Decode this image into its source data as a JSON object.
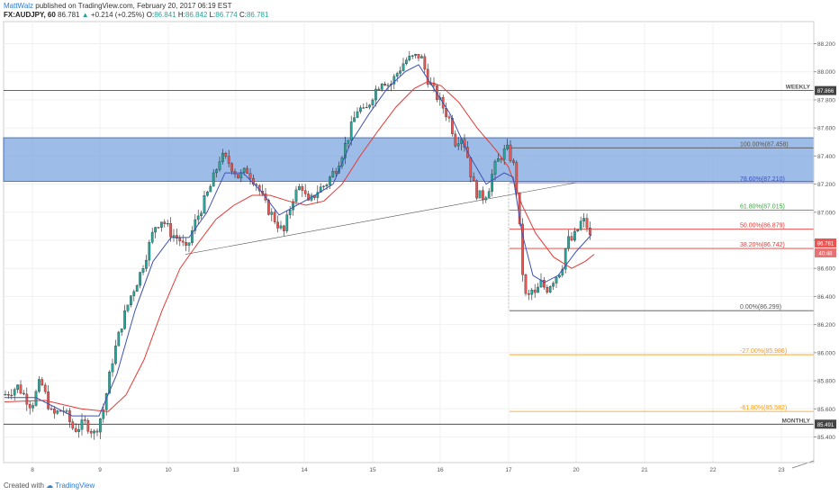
{
  "header": {
    "author": "MattWalz",
    "published": "published on TradingView.com, February 20, 2017 06:19 EST",
    "symbol": "FX:AUDJPY, 60",
    "last": "86.781",
    "change": "+0.214 (+0.25%)",
    "o_label": "O:",
    "o": "86.841",
    "h_label": "H:",
    "h": "86.842",
    "l_label": "L:",
    "l": "86.774",
    "c_label": "C:",
    "c": "86.781"
  },
  "footer": {
    "created_with": "Created with",
    "brand": "TradingView"
  },
  "colors": {
    "up": "#26a69a",
    "down": "#ef5350",
    "zone": "#7ea6e0",
    "ma_fast": "#3f51b5",
    "ma_slow": "#e53935",
    "fib_100": "#555555",
    "fib_786": "#3f51b5",
    "fib_618": "#43a047",
    "fib_500": "#e53935",
    "fib_382": "#e53935",
    "fib_0": "#555555",
    "fib_ext": "#ff9800"
  },
  "chart_data": {
    "type": "candlestick",
    "x_ticks": [
      "8",
      "9",
      "10",
      "13",
      "14",
      "15",
      "16",
      "17",
      "20",
      "21",
      "22",
      "23"
    ],
    "y_ticks": [
      "88.200",
      "88.000",
      "87.800",
      "87.600",
      "87.400",
      "87.200",
      "87.000",
      "86.800",
      "86.600",
      "86.400",
      "86.200",
      "86.000",
      "85.800",
      "85.600",
      "85.400"
    ],
    "ylim": [
      85.3,
      88.3
    ],
    "current_price": "86.781",
    "countdown": "40:48",
    "levels": [
      {
        "name": "WEEKLY",
        "value": "87.866"
      },
      {
        "name": "MONTHLY",
        "value": "85.491"
      }
    ],
    "zone": {
      "from": 87.22,
      "to": 87.53
    },
    "fib_levels": [
      {
        "label": "100.00%(87.458)",
        "value": 87.458,
        "role": "fib_100"
      },
      {
        "label": "78.60%(87.210)",
        "value": 87.21,
        "role": "fib_786"
      },
      {
        "label": "61.80%(87.015)",
        "value": 87.015,
        "role": "fib_618"
      },
      {
        "label": "50.00%(86.879)",
        "value": 86.879,
        "role": "fib_500"
      },
      {
        "label": "38.20%(86.742)",
        "value": 86.742,
        "role": "fib_382"
      },
      {
        "label": "0.00%(86.299)",
        "value": 86.299,
        "role": "fib_0"
      },
      {
        "label": "-27.00%(85.986)",
        "value": 85.986,
        "role": "fib_ext"
      },
      {
        "label": "-61.80%(85.582)",
        "value": 85.582,
        "role": "fib_ext"
      }
    ],
    "trendline": {
      "from": [
        206,
        86.7
      ],
      "to": [
        640,
        87.21
      ]
    },
    "price_path": [
      [
        5,
        85.7
      ],
      [
        20,
        85.76
      ],
      [
        35,
        85.62
      ],
      [
        45,
        85.8
      ],
      [
        58,
        85.55
      ],
      [
        70,
        85.6
      ],
      [
        82,
        85.45
      ],
      [
        95,
        85.5
      ],
      [
        105,
        85.42
      ],
      [
        115,
        85.6
      ],
      [
        125,
        85.95
      ],
      [
        135,
        86.2
      ],
      [
        145,
        86.4
      ],
      [
        155,
        86.55
      ],
      [
        165,
        86.75
      ],
      [
        172,
        86.9
      ],
      [
        180,
        86.95
      ],
      [
        190,
        86.85
      ],
      [
        200,
        86.8
      ],
      [
        207,
        86.72
      ],
      [
        215,
        86.9
      ],
      [
        225,
        87.05
      ],
      [
        235,
        87.2
      ],
      [
        245,
        87.4
      ],
      [
        255,
        87.35
      ],
      [
        265,
        87.25
      ],
      [
        275,
        87.3
      ],
      [
        285,
        87.2
      ],
      [
        295,
        87.05
      ],
      [
        305,
        86.95
      ],
      [
        315,
        86.85
      ],
      [
        325,
        87.1
      ],
      [
        335,
        87.2
      ],
      [
        342,
        87.05
      ],
      [
        352,
        87.15
      ],
      [
        362,
        87.2
      ],
      [
        372,
        87.3
      ],
      [
        382,
        87.45
      ],
      [
        390,
        87.6
      ],
      [
        398,
        87.75
      ],
      [
        405,
        87.7
      ],
      [
        415,
        87.85
      ],
      [
        425,
        87.95
      ],
      [
        433,
        87.9
      ],
      [
        442,
        88.0
      ],
      [
        450,
        88.08
      ],
      [
        460,
        88.1
      ],
      [
        467,
        88.12
      ],
      [
        475,
        87.95
      ],
      [
        483,
        87.85
      ],
      [
        492,
        87.75
      ],
      [
        500,
        87.65
      ],
      [
        506,
        87.5
      ],
      [
        512,
        87.55
      ],
      [
        518,
        87.45
      ],
      [
        522,
        87.3
      ],
      [
        528,
        87.15
      ],
      [
        535,
        87.1
      ],
      [
        542,
        87.15
      ],
      [
        548,
        87.3
      ],
      [
        556,
        87.4
      ],
      [
        563,
        87.45
      ],
      [
        570,
        87.35
      ],
      [
        575,
        87.1
      ],
      [
        580,
        86.6
      ],
      [
        585,
        86.35
      ],
      [
        590,
        86.45
      ],
      [
        595,
        86.4
      ],
      [
        600,
        86.5
      ],
      [
        607,
        86.45
      ],
      [
        612,
        86.5
      ],
      [
        618,
        86.55
      ],
      [
        624,
        86.6
      ],
      [
        630,
        86.8
      ],
      [
        636,
        86.8
      ],
      [
        642,
        86.88
      ],
      [
        647,
        86.95
      ],
      [
        652,
        86.9
      ],
      [
        657,
        86.78
      ]
    ],
    "ma_fast": [
      [
        5,
        85.68
      ],
      [
        40,
        85.68
      ],
      [
        80,
        85.55
      ],
      [
        110,
        85.55
      ],
      [
        130,
        85.85
      ],
      [
        150,
        86.3
      ],
      [
        170,
        86.65
      ],
      [
        190,
        86.82
      ],
      [
        210,
        86.82
      ],
      [
        230,
        87.0
      ],
      [
        250,
        87.28
      ],
      [
        270,
        87.28
      ],
      [
        290,
        87.15
      ],
      [
        310,
        86.98
      ],
      [
        330,
        87.05
      ],
      [
        350,
        87.12
      ],
      [
        370,
        87.2
      ],
      [
        390,
        87.5
      ],
      [
        410,
        87.7
      ],
      [
        430,
        87.88
      ],
      [
        450,
        88.0
      ],
      [
        465,
        88.05
      ],
      [
        480,
        87.9
      ],
      [
        500,
        87.7
      ],
      [
        520,
        87.42
      ],
      [
        540,
        87.2
      ],
      [
        560,
        87.28
      ],
      [
        570,
        87.25
      ],
      [
        580,
        86.85
      ],
      [
        592,
        86.55
      ],
      [
        605,
        86.5
      ],
      [
        620,
        86.55
      ],
      [
        640,
        86.72
      ],
      [
        657,
        86.84
      ]
    ],
    "ma_slow": [
      [
        5,
        85.65
      ],
      [
        50,
        85.66
      ],
      [
        90,
        85.6
      ],
      [
        120,
        85.58
      ],
      [
        140,
        85.7
      ],
      [
        160,
        85.95
      ],
      [
        180,
        86.3
      ],
      [
        200,
        86.6
      ],
      [
        220,
        86.78
      ],
      [
        240,
        86.95
      ],
      [
        260,
        87.05
      ],
      [
        280,
        87.12
      ],
      [
        300,
        87.12
      ],
      [
        320,
        87.08
      ],
      [
        340,
        87.05
      ],
      [
        360,
        87.08
      ],
      [
        380,
        87.2
      ],
      [
        400,
        87.4
      ],
      [
        420,
        87.58
      ],
      [
        440,
        87.75
      ],
      [
        460,
        87.88
      ],
      [
        475,
        87.93
      ],
      [
        490,
        87.9
      ],
      [
        510,
        87.78
      ],
      [
        530,
        87.6
      ],
      [
        550,
        87.45
      ],
      [
        565,
        87.32
      ],
      [
        580,
        87.05
      ],
      [
        595,
        86.85
      ],
      [
        615,
        86.68
      ],
      [
        635,
        86.6
      ],
      [
        650,
        86.65
      ],
      [
        660,
        86.7
      ]
    ]
  }
}
